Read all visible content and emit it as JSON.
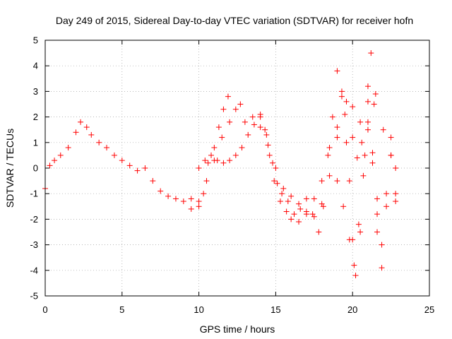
{
  "chart_data": {
    "type": "scatter",
    "title": "Day 249 of 2015, Sidereal Day-to-day VTEC variation (SDTVAR) for receiver hofn",
    "xlabel": "GPS time / hours",
    "ylabel": "SDTVAR / TECUs",
    "xlim": [
      0,
      25
    ],
    "ylim": [
      -5,
      5
    ],
    "xticks": [
      0,
      5,
      10,
      15,
      20,
      25
    ],
    "yticks": [
      -5,
      -4,
      -3,
      -2,
      -1,
      0,
      1,
      2,
      3,
      4,
      5
    ],
    "marker": "+",
    "grid": true,
    "series": [
      {
        "name": "SDTVAR",
        "color": "#ff0000",
        "x": [
          0,
          0.3,
          0.6,
          1.0,
          1.5,
          2.0,
          2.3,
          2.7,
          3.0,
          3.5,
          4.0,
          4.5,
          5.0,
          5.5,
          6.0,
          6.5,
          7.0,
          7.5,
          8.0,
          8.5,
          9.0,
          9.5,
          10.0,
          10.3,
          10.6,
          11.0,
          11.3,
          11.6,
          11.9
        ],
        "y": [
          -0.8,
          0.1,
          0.3,
          0.5,
          0.8,
          1.4,
          1.8,
          1.6,
          1.3,
          1.0,
          0.8,
          0.5,
          0.3,
          0.1,
          -0.1,
          0.0,
          -0.5,
          -0.9,
          -1.1,
          -1.2,
          -1.3,
          -1.2,
          -1.5,
          -1.0,
          0.2,
          0.8,
          1.6,
          2.3,
          2.8
        ]
      },
      {
        "name": "SDTVAR",
        "color": "#ff0000",
        "x": [
          9.5,
          10.0,
          10.5,
          11.0,
          11.5,
          12.0,
          12.4,
          12.7,
          13.0,
          13.5,
          14.0,
          14.3,
          14.6,
          14.9,
          15.3,
          15.7,
          16.0,
          16.5,
          17.0,
          17.5,
          18.0,
          18.5,
          19.0,
          19.5,
          20.0,
          20.5,
          21.0,
          21.5,
          22.0,
          22.5,
          22.8
        ],
        "y": [
          -1.6,
          -1.3,
          -0.5,
          0.3,
          1.2,
          1.8,
          2.3,
          2.5,
          1.8,
          2.0,
          2.1,
          1.5,
          0.5,
          -0.5,
          -1.3,
          -1.7,
          -2.0,
          -2.1,
          -1.8,
          -1.2,
          -0.5,
          0.8,
          1.6,
          2.1,
          2.4,
          1.8,
          2.6,
          2.9,
          1.5,
          0.5,
          -1.3
        ]
      },
      {
        "name": "SDTVAR",
        "color": "#ff0000",
        "x": [
          10.0,
          10.4,
          10.8,
          11.2,
          11.6,
          12.0,
          12.4,
          12.8,
          13.2,
          13.6,
          14.0,
          14.4,
          14.8,
          15.1,
          15.4,
          15.8,
          16.2,
          16.6,
          17.0,
          17.4,
          17.8,
          18.1,
          18.4,
          18.7,
          19.0,
          19.3,
          19.6,
          19.8,
          20.0,
          20.2,
          20.5,
          20.8,
          21.0,
          21.2,
          21.4,
          21.6
        ],
        "y": [
          0.0,
          0.3,
          0.5,
          0.3,
          0.2,
          0.3,
          0.5,
          0.8,
          1.3,
          1.7,
          2.0,
          1.3,
          0.2,
          -0.6,
          -1.0,
          -1.3,
          -1.8,
          -1.6,
          -1.2,
          -1.8,
          -2.5,
          -1.5,
          0.5,
          2.0,
          3.8,
          3.0,
          1.0,
          -0.5,
          -2.8,
          -4.2,
          -2.5,
          0.5,
          3.2,
          4.5,
          2.5,
          -1.8
        ]
      },
      {
        "name": "SDTVAR",
        "color": "#ff0000",
        "x": [
          14.0,
          14.5,
          15.0,
          15.5,
          16.0,
          16.5,
          17.0,
          17.5,
          18.0,
          18.5,
          19.0,
          19.3,
          19.6,
          20.0,
          20.3,
          20.6,
          21.0,
          21.3,
          21.6,
          21.9,
          22.2,
          22.5,
          22.8
        ],
        "y": [
          1.6,
          0.9,
          0.0,
          -0.8,
          -1.1,
          -1.4,
          -1.7,
          -1.9,
          -1.4,
          -0.3,
          1.2,
          2.8,
          2.6,
          1.2,
          0.4,
          1.0,
          1.8,
          0.6,
          -1.2,
          -3.0,
          -1.0,
          1.2,
          0.0
        ]
      },
      {
        "name": "SDTVAR",
        "color": "#ff0000",
        "x": [
          19.0,
          19.4,
          19.8,
          20.1,
          20.4,
          20.7,
          21.0,
          21.3,
          21.6,
          21.9,
          22.2,
          22.5,
          22.8
        ],
        "y": [
          -0.5,
          -1.5,
          -2.8,
          -3.8,
          -2.2,
          -0.3,
          1.5,
          0.2,
          -2.5,
          -3.9,
          -1.5,
          0.5,
          -1.0
        ]
      }
    ]
  }
}
